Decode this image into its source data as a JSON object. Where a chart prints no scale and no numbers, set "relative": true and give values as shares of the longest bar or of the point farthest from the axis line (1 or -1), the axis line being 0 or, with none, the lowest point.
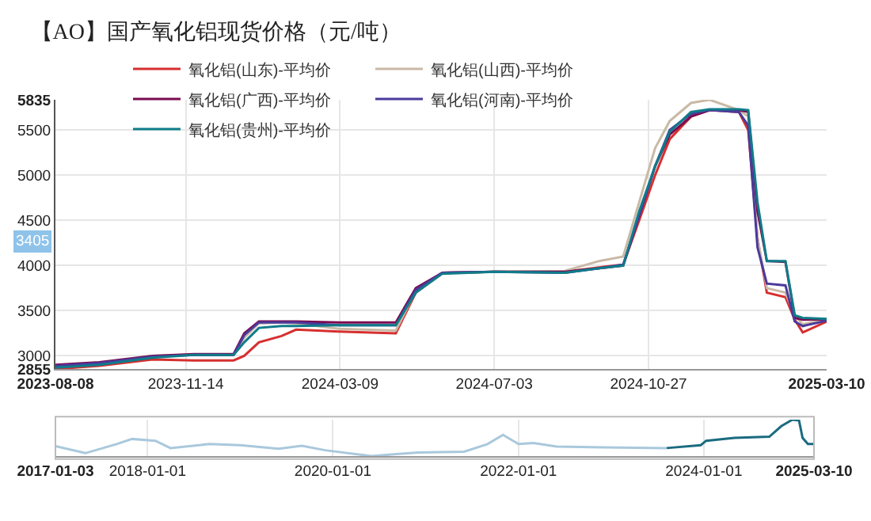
{
  "chart_data": [
    {
      "type": "line",
      "title": "【AO】国产氧化铝现货价格（元/吨）",
      "legend": "top",
      "grid": true,
      "x": [
        "2023-08-08",
        "2023-09-10",
        "2023-10-20",
        "2023-11-20",
        "2023-12-20",
        "2023-12-28",
        "2024-01-08",
        "2024-01-25",
        "2024-02-05",
        "2024-03-08",
        "2024-04-20",
        "2024-05-05",
        "2024-05-25",
        "2024-07-03",
        "2024-08-25",
        "2024-09-20",
        "2024-10-08",
        "2024-10-20",
        "2024-11-01",
        "2024-11-12",
        "2024-11-28",
        "2024-12-12",
        "2025-01-03",
        "2025-01-10",
        "2025-01-17",
        "2025-01-24",
        "2025-02-07",
        "2025-02-14",
        "2025-02-20",
        "2025-03-10"
      ],
      "xlim": [
        "2023-08-08",
        "2025-03-10"
      ],
      "xticks": [
        {
          "value": "2023-08-08",
          "label": "2023-08-08"
        },
        {
          "value": "2023-11-14",
          "label": "2023-11-14"
        },
        {
          "value": "2024-03-09",
          "label": "2024-03-09"
        },
        {
          "value": "2024-07-03",
          "label": "2024-07-03"
        },
        {
          "value": "2024-10-27",
          "label": "2024-10-27"
        },
        {
          "value": "2025-03-10",
          "label": "2025-03-10"
        }
      ],
      "ylim": [
        2855,
        5835
      ],
      "yticks": [
        2855,
        3000,
        3500,
        4000,
        4500,
        5000,
        5500,
        5835
      ],
      "annotations": [
        "3405"
      ],
      "series": [
        {
          "name": "氧化铝(山东)-平均价",
          "color": "#d62f2f",
          "values": [
            2855,
            2890,
            2960,
            2950,
            2950,
            3000,
            3150,
            3220,
            3290,
            3270,
            3250,
            3700,
            3920,
            3930,
            3930,
            3980,
            4010,
            4500,
            5000,
            5400,
            5650,
            5720,
            5700,
            5500,
            4300,
            3700,
            3650,
            3400,
            3260,
            3380
          ]
        },
        {
          "name": "氧化铝(山西)-平均价",
          "color": "#c9b9a6",
          "values": [
            2880,
            2920,
            3000,
            3010,
            3010,
            3200,
            3360,
            3370,
            3360,
            3300,
            3280,
            3720,
            3920,
            3930,
            3940,
            4050,
            4100,
            4700,
            5300,
            5600,
            5800,
            5835,
            5720,
            5650,
            4300,
            3750,
            3700,
            3450,
            3350,
            3400
          ]
        },
        {
          "name": "氧化铝(广西)-平均价",
          "color": "#7a0a4f",
          "values": [
            2900,
            2930,
            3000,
            3020,
            3020,
            3250,
            3380,
            3380,
            3380,
            3370,
            3370,
            3750,
            3920,
            3930,
            3930,
            3970,
            4000,
            4550,
            5100,
            5450,
            5650,
            5720,
            5720,
            5700,
            4600,
            4050,
            4040,
            3420,
            3400,
            3405
          ]
        },
        {
          "name": "氧化铝(河南)-平均价",
          "color": "#4b3a9c",
          "values": [
            2890,
            2920,
            2990,
            3010,
            3010,
            3230,
            3370,
            3370,
            3370,
            3340,
            3340,
            3730,
            3920,
            3930,
            3920,
            3970,
            4010,
            4550,
            5100,
            5500,
            5680,
            5720,
            5700,
            5550,
            4200,
            3800,
            3780,
            3380,
            3330,
            3390
          ]
        },
        {
          "name": "氧化铝(贵州)-平均价",
          "color": "#0f7c89",
          "values": [
            2870,
            2900,
            2980,
            3010,
            3010,
            3150,
            3310,
            3330,
            3330,
            3340,
            3340,
            3700,
            3910,
            3930,
            3920,
            3970,
            4000,
            4600,
            5100,
            5480,
            5700,
            5730,
            5730,
            5720,
            4700,
            4050,
            4050,
            3450,
            3420,
            3410
          ]
        }
      ]
    },
    {
      "type": "line",
      "relative": true,
      "grid": "x",
      "legend": false,
      "xlim": [
        "2017-01-03",
        "2025-03-10"
      ],
      "xticks": [
        {
          "value": "2017-01-03",
          "label": "2017-01-03"
        },
        {
          "value": "2018-01-01",
          "label": "2018-01-01"
        },
        {
          "value": "2020-01-01",
          "label": "2020-01-01"
        },
        {
          "value": "2022-01-01",
          "label": "2022-01-01"
        },
        {
          "value": "2024-01-01",
          "label": "2024-01-01"
        },
        {
          "value": "2025-03-10",
          "label": "2025-03-10"
        }
      ],
      "series": [
        {
          "color": "#a9c8dc",
          "x": [
            "2017-01-03",
            "2017-05-01",
            "2017-09-01",
            "2017-11-01",
            "2018-02-01",
            "2018-04-01",
            "2018-09-01",
            "2019-01-01",
            "2019-06-01",
            "2019-09-01",
            "2019-12-01",
            "2020-06-01",
            "2020-12-01",
            "2021-06-01",
            "2021-09-01",
            "2021-11-01",
            "2022-01-01",
            "2022-03-01",
            "2022-06-01",
            "2022-12-01",
            "2023-08-08"
          ],
          "values": [
            0.27,
            0.08,
            0.33,
            0.47,
            0.42,
            0.22,
            0.33,
            0.3,
            0.2,
            0.28,
            0.16,
            0,
            0.1,
            0.12,
            0.33,
            0.58,
            0.33,
            0.36,
            0.26,
            0.24,
            0.22
          ]
        },
        {
          "color": "#1a6b80",
          "x": [
            "2023-08-08",
            "2023-12-20",
            "2024-01-10",
            "2024-05-01",
            "2024-09-15",
            "2024-11-01",
            "2024-12-15",
            "2025-01-10",
            "2025-01-24",
            "2025-02-14",
            "2025-03-10"
          ],
          "values": [
            0.22,
            0.3,
            0.42,
            0.5,
            0.53,
            0.82,
            1,
            0.98,
            0.5,
            0.33,
            0.33
          ]
        }
      ]
    }
  ]
}
